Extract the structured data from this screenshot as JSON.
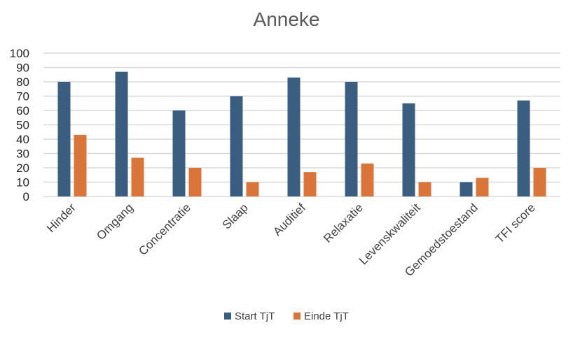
{
  "chart_data": {
    "type": "bar",
    "title": "Anneke",
    "categories": [
      "Hinder",
      "Omgang",
      "Concentratie",
      "Slaap",
      "Auditief",
      "Relaxatie",
      "Levenskwaliteit",
      "Gemoedstoestand",
      "TFI score"
    ],
    "series": [
      {
        "name": "Start TjT",
        "color": "#3b5d7f",
        "values": [
          80,
          87,
          60,
          70,
          83,
          80,
          65,
          10,
          67
        ]
      },
      {
        "name": "Einde TjT",
        "color": "#d9743a",
        "values": [
          43,
          27,
          20,
          10,
          17,
          23,
          10,
          13,
          20
        ]
      }
    ],
    "ylim": [
      0,
      100
    ],
    "yticks": [
      "0",
      "10",
      "20",
      "30",
      "40",
      "50",
      "60",
      "70",
      "80",
      "90",
      "100"
    ],
    "grid": true,
    "legend_position": "bottom"
  }
}
